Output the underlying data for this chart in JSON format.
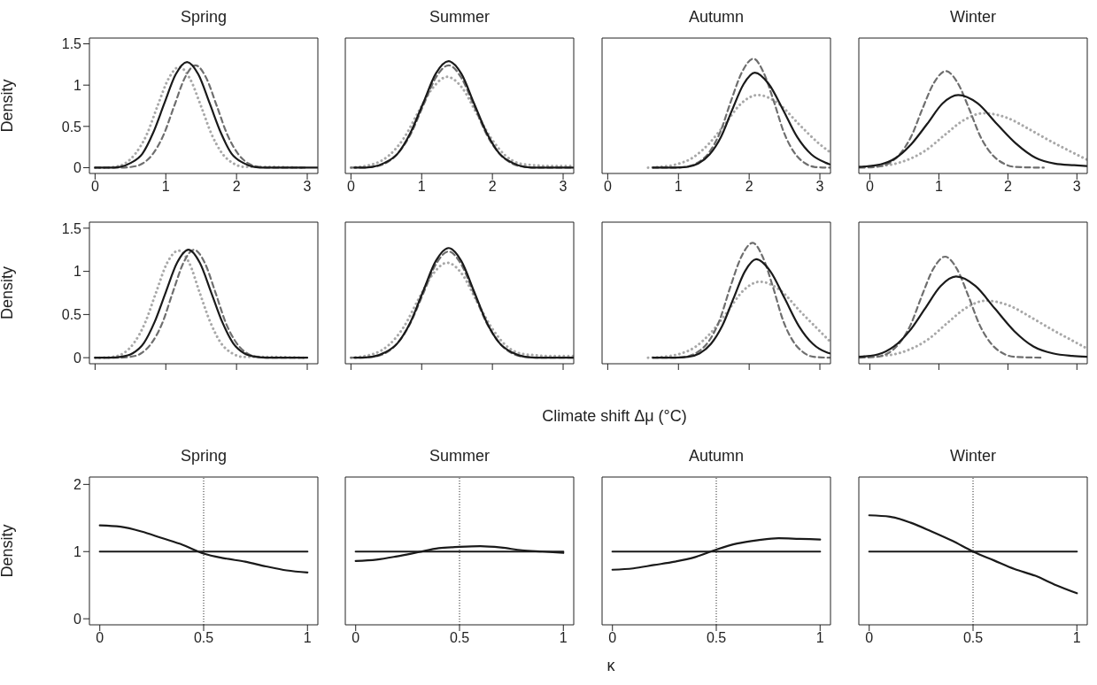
{
  "chart_data": [
    {
      "type": "line",
      "title": "Spring",
      "ylabel": "Density",
      "xlim": [
        -0.08,
        3.15
      ],
      "ylim": [
        -0.07,
        1.57
      ],
      "xticks": [
        0,
        1,
        2,
        3
      ],
      "yticks": [
        0,
        0.5,
        1,
        1.5
      ],
      "series": [
        {
          "color": "#a8a8a8",
          "line_style": "dotted",
          "x": [
            0,
            0.11,
            0.27,
            0.42,
            0.57,
            0.73,
            0.88,
            1.04,
            1.19,
            1.34,
            1.5,
            1.65,
            1.8,
            1.96,
            2.11,
            2.27,
            2.42,
            2.95
          ],
          "values": [
            0,
            0,
            0.01,
            0.05,
            0.17,
            0.4,
            0.74,
            1.08,
            1.22,
            1.08,
            0.74,
            0.4,
            0.17,
            0.05,
            0.01,
            0.01,
            0.01,
            0
          ]
        },
        {
          "color": "#6e6e6e",
          "line_style": "dashed",
          "x": [
            0,
            0.37,
            0.52,
            0.67,
            0.82,
            0.97,
            1.12,
            1.27,
            1.42,
            1.57,
            1.72,
            1.87,
            2.02,
            2.17,
            2.32,
            2.47,
            3.0
          ],
          "values": [
            0,
            0,
            0.01,
            0.05,
            0.17,
            0.4,
            0.75,
            1.09,
            1.24,
            1.09,
            0.75,
            0.4,
            0.17,
            0.05,
            0.01,
            0,
            0
          ]
        },
        {
          "color": "#1a1a1a",
          "line_style": "solid",
          "x": [
            0,
            0.19,
            0.35,
            0.51,
            0.67,
            0.82,
            0.98,
            1.14,
            1.3,
            1.46,
            1.62,
            1.78,
            1.93,
            2.09,
            2.25,
            2.41,
            3.14
          ],
          "values": [
            0,
            0,
            0.01,
            0.06,
            0.17,
            0.42,
            0.78,
            1.13,
            1.28,
            1.13,
            0.78,
            0.42,
            0.17,
            0.06,
            0.01,
            0,
            0
          ]
        }
      ]
    },
    {
      "type": "line",
      "title": "Summer",
      "tick_labels": "x",
      "xlim": [
        -0.08,
        3.15
      ],
      "ylim": [
        -0.07,
        1.57
      ],
      "xticks": [
        0,
        1,
        2,
        3
      ],
      "series": [
        {
          "color": "#a8a8a8",
          "line_style": "dotted",
          "x": [
            0,
            0.34,
            0.54,
            0.75,
            0.95,
            1.16,
            1.36,
            1.57,
            1.77,
            1.98,
            2.18,
            2.39,
            2.59,
            2.8,
            3.14
          ],
          "values": [
            0,
            0.05,
            0.15,
            0.36,
            0.67,
            0.97,
            1.1,
            0.97,
            0.67,
            0.36,
            0.15,
            0.05,
            0.03,
            0.02,
            0.02
          ]
        },
        {
          "color": "#6e6e6e",
          "line_style": "dashed",
          "x": [
            0,
            0.12,
            0.3,
            0.48,
            0.66,
            0.84,
            1.02,
            1.2,
            1.38,
            1.56,
            1.74,
            1.92,
            2.1,
            2.28,
            2.46,
            2.64,
            3.14
          ],
          "values": [
            0,
            0,
            0.01,
            0.05,
            0.17,
            0.4,
            0.75,
            1.09,
            1.24,
            1.09,
            0.75,
            0.4,
            0.17,
            0.05,
            0.01,
            0,
            0
          ]
        },
        {
          "color": "#1a1a1a",
          "line_style": "solid",
          "x": [
            0.05,
            0.12,
            0.3,
            0.48,
            0.66,
            0.84,
            1.02,
            1.2,
            1.38,
            1.56,
            1.74,
            1.92,
            2.1,
            2.28,
            2.46,
            2.64,
            3.14
          ],
          "values": [
            0,
            0,
            0.01,
            0.06,
            0.17,
            0.42,
            0.78,
            1.14,
            1.29,
            1.14,
            0.78,
            0.42,
            0.17,
            0.06,
            0.01,
            0,
            0
          ]
        }
      ]
    },
    {
      "type": "line",
      "title": "Autumn",
      "tick_labels": "x",
      "xlim": [
        -0.08,
        3.15
      ],
      "ylim": [
        -0.07,
        1.57
      ],
      "xticks": [
        0,
        1,
        2,
        3
      ],
      "series": [
        {
          "color": "#a8a8a8",
          "line_style": "dotted",
          "x": [
            0.57,
            0.74,
            0.97,
            1.2,
            1.43,
            1.66,
            1.89,
            2.12,
            2.41,
            2.7,
            2.99,
            3.14
          ],
          "values": [
            0,
            0.01,
            0.04,
            0.12,
            0.29,
            0.53,
            0.78,
            0.88,
            0.78,
            0.53,
            0.29,
            0.19
          ]
        },
        {
          "color": "#6e6e6e",
          "line_style": "dashed",
          "x": [
            0.64,
            0.95,
            1.11,
            1.27,
            1.43,
            1.59,
            1.74,
            1.9,
            2.06,
            2.2,
            2.35,
            2.49,
            2.64,
            2.78,
            2.92,
            3.14
          ],
          "values": [
            0,
            0,
            0.01,
            0.06,
            0.18,
            0.43,
            0.8,
            1.16,
            1.32,
            1.16,
            0.8,
            0.43,
            0.18,
            0.06,
            0.01,
            0
          ]
        },
        {
          "color": "#1a1a1a",
          "line_style": "solid",
          "x": [
            0.64,
            0.9,
            1.12,
            1.28,
            1.44,
            1.6,
            1.76,
            1.92,
            2.08,
            2.28,
            2.48,
            2.68,
            2.88,
            3.08,
            3.14
          ],
          "values": [
            0,
            0,
            0.01,
            0.05,
            0.16,
            0.37,
            0.7,
            1.01,
            1.15,
            1.01,
            0.7,
            0.37,
            0.16,
            0.06,
            0.04
          ]
        }
      ]
    },
    {
      "type": "line",
      "title": "Winter",
      "tick_labels": "x",
      "xlim": [
        -0.16,
        3.15
      ],
      "ylim": [
        -0.07,
        1.57
      ],
      "xticks": [
        0,
        1,
        2,
        3
      ],
      "series": [
        {
          "color": "#a8a8a8",
          "line_style": "dotted",
          "x": [
            -0.15,
            0.25,
            0.53,
            0.81,
            1.09,
            1.37,
            1.65,
            2.0,
            2.3,
            2.6,
            2.9,
            3.14
          ],
          "values": [
            0.01,
            0.03,
            0.09,
            0.21,
            0.4,
            0.58,
            0.66,
            0.6,
            0.47,
            0.33,
            0.2,
            0.1
          ]
        },
        {
          "color": "#6e6e6e",
          "line_style": "dashed",
          "x": [
            -0.15,
            0.1,
            0.27,
            0.43,
            0.6,
            0.76,
            0.93,
            1.1,
            1.27,
            1.44,
            1.6,
            1.77,
            1.94,
            2.1,
            2.52
          ],
          "values": [
            0,
            0.01,
            0.05,
            0.16,
            0.38,
            0.71,
            1.03,
            1.17,
            1.03,
            0.71,
            0.38,
            0.16,
            0.05,
            0.01,
            0
          ]
        },
        {
          "color": "#1a1a1a",
          "line_style": "solid",
          "x": [
            -0.15,
            0.155,
            0.38,
            0.605,
            0.83,
            1.055,
            1.28,
            1.56,
            1.84,
            2.12,
            2.4,
            2.68,
            2.96,
            3.14
          ],
          "values": [
            0.01,
            0.04,
            0.12,
            0.29,
            0.53,
            0.78,
            0.88,
            0.78,
            0.53,
            0.29,
            0.12,
            0.05,
            0.03,
            0.02
          ]
        }
      ]
    },
    {
      "type": "line",
      "ylabel": "Density",
      "tick_labels": "y",
      "xlim": [
        -0.08,
        3.15
      ],
      "ylim": [
        -0.07,
        1.57
      ],
      "xticks": [
        0,
        1,
        2,
        3
      ],
      "yticks": [
        0,
        0.5,
        1,
        1.5
      ],
      "series": [
        {
          "color": "#a8a8a8",
          "line_style": "dotted",
          "x": [
            0,
            0.09,
            0.25,
            0.4,
            0.55,
            0.71,
            0.86,
            1.02,
            1.18,
            1.33,
            1.48,
            1.63,
            1.78,
            1.94,
            2.09,
            2.25,
            2.4,
            2.95
          ],
          "values": [
            0,
            0,
            0.01,
            0.05,
            0.17,
            0.41,
            0.75,
            1.1,
            1.24,
            1.1,
            0.75,
            0.41,
            0.17,
            0.05,
            0.01,
            0.01,
            0.01,
            0
          ]
        },
        {
          "color": "#6e6e6e",
          "line_style": "dashed",
          "x": [
            0,
            0.35,
            0.5,
            0.65,
            0.8,
            0.95,
            1.1,
            1.25,
            1.4,
            1.55,
            1.7,
            1.85,
            2.0,
            2.15,
            2.3,
            2.45,
            3.0
          ],
          "values": [
            0,
            0,
            0.01,
            0.05,
            0.17,
            0.4,
            0.76,
            1.1,
            1.25,
            1.1,
            0.76,
            0.4,
            0.17,
            0.05,
            0.01,
            0,
            0
          ]
        },
        {
          "color": "#1a1a1a",
          "line_style": "solid",
          "x": [
            0,
            0.21,
            0.37,
            0.53,
            0.69,
            0.84,
            1.0,
            1.16,
            1.32,
            1.48,
            1.64,
            1.8,
            1.95,
            2.11,
            2.27,
            2.43,
            3.0
          ],
          "values": [
            0,
            0,
            0.01,
            0.05,
            0.17,
            0.41,
            0.76,
            1.1,
            1.25,
            1.1,
            0.76,
            0.41,
            0.17,
            0.05,
            0.01,
            0,
            0
          ]
        }
      ]
    },
    {
      "type": "line",
      "tick_labels": false,
      "xlim": [
        -0.08,
        3.15
      ],
      "ylim": [
        -0.07,
        1.57
      ],
      "xticks": [
        0,
        1,
        2,
        3
      ],
      "series": [
        {
          "color": "#a8a8a8",
          "line_style": "dotted",
          "x": [
            0,
            0.34,
            0.54,
            0.75,
            0.95,
            1.16,
            1.36,
            1.57,
            1.77,
            1.98,
            2.18,
            2.39,
            2.59,
            2.8,
            3.14
          ],
          "values": [
            0,
            0.05,
            0.15,
            0.36,
            0.67,
            0.97,
            1.1,
            0.97,
            0.67,
            0.36,
            0.15,
            0.05,
            0.03,
            0.02,
            0.02
          ]
        },
        {
          "color": "#6e6e6e",
          "line_style": "dashed",
          "x": [
            0,
            0.12,
            0.3,
            0.48,
            0.66,
            0.84,
            1.02,
            1.2,
            1.38,
            1.56,
            1.74,
            1.92,
            2.1,
            2.28,
            2.46,
            2.64,
            3.14
          ],
          "values": [
            0,
            0,
            0.01,
            0.05,
            0.17,
            0.4,
            0.74,
            1.08,
            1.23,
            1.08,
            0.74,
            0.4,
            0.17,
            0.05,
            0.01,
            0,
            0
          ]
        },
        {
          "color": "#1a1a1a",
          "line_style": "solid",
          "x": [
            0.05,
            0.12,
            0.3,
            0.48,
            0.66,
            0.84,
            1.02,
            1.2,
            1.38,
            1.56,
            1.74,
            1.92,
            2.1,
            2.28,
            2.46,
            2.64,
            3.14
          ],
          "values": [
            0,
            0,
            0.01,
            0.06,
            0.17,
            0.41,
            0.77,
            1.12,
            1.27,
            1.12,
            0.77,
            0.41,
            0.17,
            0.06,
            0.01,
            0,
            0
          ]
        }
      ]
    },
    {
      "type": "line",
      "xlabel": "Climate shift Δμ (°C)",
      "tick_labels": false,
      "xlim": [
        -0.08,
        3.15
      ],
      "ylim": [
        -0.07,
        1.57
      ],
      "xticks": [
        0,
        1,
        2,
        3
      ],
      "series": [
        {
          "color": "#a8a8a8",
          "line_style": "dotted",
          "x": [
            0.57,
            0.77,
            1.0,
            1.23,
            1.46,
            1.69,
            1.92,
            2.15,
            2.44,
            2.73,
            3.02,
            3.14
          ],
          "values": [
            0,
            0.01,
            0.04,
            0.12,
            0.29,
            0.53,
            0.78,
            0.88,
            0.78,
            0.53,
            0.29,
            0.19
          ]
        },
        {
          "color": "#6e6e6e",
          "line_style": "dashed",
          "x": [
            0.64,
            0.94,
            1.1,
            1.26,
            1.42,
            1.58,
            1.73,
            1.89,
            2.05,
            2.19,
            2.34,
            2.48,
            2.63,
            2.77,
            2.91,
            3.14
          ],
          "values": [
            0,
            0,
            0.01,
            0.06,
            0.18,
            0.43,
            0.81,
            1.17,
            1.33,
            1.17,
            0.81,
            0.43,
            0.18,
            0.06,
            0.01,
            0
          ]
        },
        {
          "color": "#1a1a1a",
          "line_style": "solid",
          "x": [
            0.64,
            0.92,
            1.14,
            1.3,
            1.46,
            1.62,
            1.78,
            1.94,
            2.1,
            2.3,
            2.5,
            2.7,
            2.9,
            3.1,
            3.14
          ],
          "values": [
            0,
            0,
            0.01,
            0.05,
            0.16,
            0.37,
            0.69,
            1.0,
            1.14,
            1.0,
            0.69,
            0.37,
            0.16,
            0.06,
            0.05
          ]
        }
      ]
    },
    {
      "type": "line",
      "tick_labels": false,
      "xlim": [
        -0.16,
        3.15
      ],
      "ylim": [
        -0.07,
        1.57
      ],
      "xticks": [
        0,
        1,
        2,
        3
      ],
      "series": [
        {
          "color": "#a8a8a8",
          "line_style": "dotted",
          "x": [
            -0.15,
            0.28,
            0.56,
            0.84,
            1.12,
            1.4,
            1.68,
            2.03,
            2.33,
            2.63,
            2.93,
            3.14
          ],
          "values": [
            0.01,
            0.03,
            0.09,
            0.21,
            0.4,
            0.58,
            0.66,
            0.6,
            0.47,
            0.33,
            0.2,
            0.11
          ]
        },
        {
          "color": "#6e6e6e",
          "line_style": "dashed",
          "x": [
            -0.15,
            0.09,
            0.26,
            0.42,
            0.59,
            0.75,
            0.92,
            1.09,
            1.26,
            1.43,
            1.59,
            1.76,
            1.93,
            2.09,
            2.52
          ],
          "values": [
            0,
            0.01,
            0.05,
            0.16,
            0.38,
            0.71,
            1.03,
            1.17,
            1.03,
            0.71,
            0.38,
            0.16,
            0.05,
            0.01,
            0
          ]
        },
        {
          "color": "#1a1a1a",
          "line_style": "solid",
          "x": [
            -0.15,
            0.125,
            0.35,
            0.575,
            0.8,
            1.025,
            1.25,
            1.53,
            1.81,
            2.09,
            2.37,
            2.65,
            2.93,
            3.14
          ],
          "values": [
            0.01,
            0.04,
            0.13,
            0.31,
            0.57,
            0.83,
            0.94,
            0.83,
            0.57,
            0.31,
            0.13,
            0.05,
            0.02,
            0.01
          ]
        }
      ]
    },
    {
      "type": "line",
      "title": "Spring",
      "ylabel": "Density",
      "xlim": [
        -0.05,
        1.05
      ],
      "ylim": [
        -0.09,
        2.11
      ],
      "xticks": [
        0,
        0.5,
        1
      ],
      "yticks": [
        0,
        1,
        2
      ],
      "ref_lines": [
        {
          "axis": "x",
          "value": 0.5,
          "line_style": "dotted"
        }
      ],
      "series": [
        {
          "color": "#1a1a1a",
          "line_style": "solid",
          "x": [
            0,
            1
          ],
          "values": [
            1,
            1
          ]
        },
        {
          "color": "#1a1a1a",
          "line_style": "solid",
          "x": [
            0,
            0.1,
            0.2,
            0.3,
            0.4,
            0.5,
            0.6,
            0.7,
            0.8,
            0.9,
            1
          ],
          "values": [
            1.39,
            1.37,
            1.3,
            1.2,
            1.1,
            0.97,
            0.9,
            0.85,
            0.78,
            0.72,
            0.69
          ]
        }
      ]
    },
    {
      "type": "line",
      "title": "Summer",
      "tick_labels": "x",
      "xlim": [
        -0.05,
        1.05
      ],
      "ylim": [
        -0.09,
        2.11
      ],
      "xticks": [
        0,
        0.5,
        1
      ],
      "ref_lines": [
        {
          "axis": "x",
          "value": 0.5,
          "line_style": "dotted"
        }
      ],
      "series": [
        {
          "color": "#1a1a1a",
          "line_style": "solid",
          "x": [
            0,
            1
          ],
          "values": [
            1,
            1
          ]
        },
        {
          "color": "#1a1a1a",
          "line_style": "solid",
          "x": [
            0,
            0.1,
            0.2,
            0.3,
            0.4,
            0.5,
            0.6,
            0.7,
            0.8,
            0.9,
            1
          ],
          "values": [
            0.86,
            0.88,
            0.93,
            0.99,
            1.05,
            1.07,
            1.08,
            1.06,
            1.02,
            1.0,
            0.98
          ]
        }
      ]
    },
    {
      "type": "line",
      "title": "Autumn",
      "xlabel": "κ",
      "tick_labels": "x",
      "xlim": [
        -0.05,
        1.05
      ],
      "ylim": [
        -0.09,
        2.11
      ],
      "xticks": [
        0,
        0.5,
        1
      ],
      "ref_lines": [
        {
          "axis": "x",
          "value": 0.5,
          "line_style": "dotted"
        }
      ],
      "series": [
        {
          "color": "#1a1a1a",
          "line_style": "solid",
          "x": [
            0,
            1
          ],
          "values": [
            1,
            1
          ]
        },
        {
          "color": "#1a1a1a",
          "line_style": "solid",
          "x": [
            0,
            0.1,
            0.2,
            0.3,
            0.4,
            0.5,
            0.6,
            0.7,
            0.8,
            0.9,
            1
          ],
          "values": [
            0.73,
            0.75,
            0.8,
            0.85,
            0.92,
            1.03,
            1.12,
            1.17,
            1.2,
            1.19,
            1.18
          ]
        }
      ]
    },
    {
      "type": "line",
      "title": "Winter",
      "tick_labels": "x",
      "xlim": [
        -0.05,
        1.05
      ],
      "ylim": [
        -0.09,
        2.11
      ],
      "xticks": [
        0,
        0.5,
        1
      ],
      "ref_lines": [
        {
          "axis": "x",
          "value": 0.5,
          "line_style": "dotted"
        }
      ],
      "series": [
        {
          "color": "#1a1a1a",
          "line_style": "solid",
          "x": [
            0,
            1
          ],
          "values": [
            1,
            1
          ]
        },
        {
          "color": "#1a1a1a",
          "line_style": "solid",
          "x": [
            0,
            0.1,
            0.2,
            0.3,
            0.4,
            0.5,
            0.6,
            0.7,
            0.8,
            0.9,
            1
          ],
          "values": [
            1.54,
            1.52,
            1.43,
            1.3,
            1.16,
            1.0,
            0.87,
            0.74,
            0.64,
            0.5,
            0.38
          ]
        }
      ]
    }
  ]
}
